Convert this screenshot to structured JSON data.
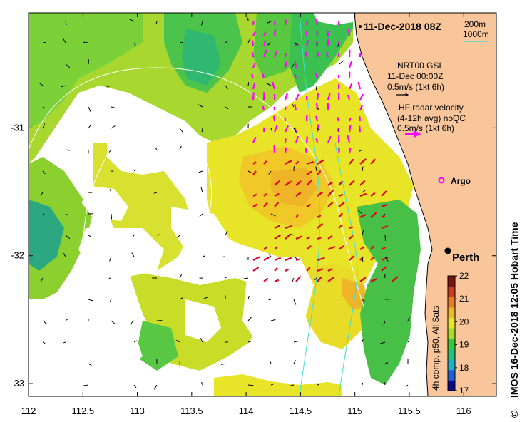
{
  "title": "11-Dec-2018 08Z",
  "depth_legend": {
    "contour_1": "200m",
    "contour_2": "1000m",
    "contour_2_color": "#40e0d0"
  },
  "model_legend": {
    "line1": "NRT00 GSL",
    "line2": "11-Dec 00:00Z",
    "line3": "0.5m/s (1kt 6h)",
    "arrow_color": "#000000"
  },
  "radar_legend": {
    "line1": "HF radar velocity",
    "line2": "(4-12h avg) noQC",
    "line3": "0.5m/s (1kt 6h)",
    "arrow_color": "#ff00ff"
  },
  "argo_label": "Argo",
  "argo_color": "#ff00ff",
  "city_label": "Perth",
  "colorbar": {
    "caption": "4h comp. p50, All Sats",
    "min": 17,
    "max": 22,
    "ticks": [
      "17",
      "18",
      "19",
      "20",
      "21",
      "22"
    ],
    "colors": [
      "#0a0a8a",
      "#1f5fd6",
      "#1fb0c8",
      "#28c07a",
      "#3cc83c",
      "#a8dc28",
      "#e8e428",
      "#f0b828",
      "#e87a28",
      "#c83c1e",
      "#7a1410"
    ]
  },
  "side_label": "IMOS 16-Dec-2018 12:05 Hobart Time",
  "copyright": "©",
  "x_axis": {
    "min": 112,
    "max": 116.3,
    "ticks": [
      "112",
      "112.5",
      "113",
      "113.5",
      "114",
      "114.5",
      "115",
      "115.5",
      "116"
    ]
  },
  "y_axis": {
    "min": -33.1,
    "max": -30.1,
    "ticks": [
      "-31",
      "-32",
      "-33"
    ]
  },
  "colors": {
    "land": "#f8c69a",
    "sst_cool": "#3cc83c",
    "sst_mid": "#b4dc28",
    "sst_warm": "#f0c828",
    "model_arrow": "#000000",
    "radar_arrow": "#ff00ff",
    "radar_arrow_south": "#e0001e"
  }
}
